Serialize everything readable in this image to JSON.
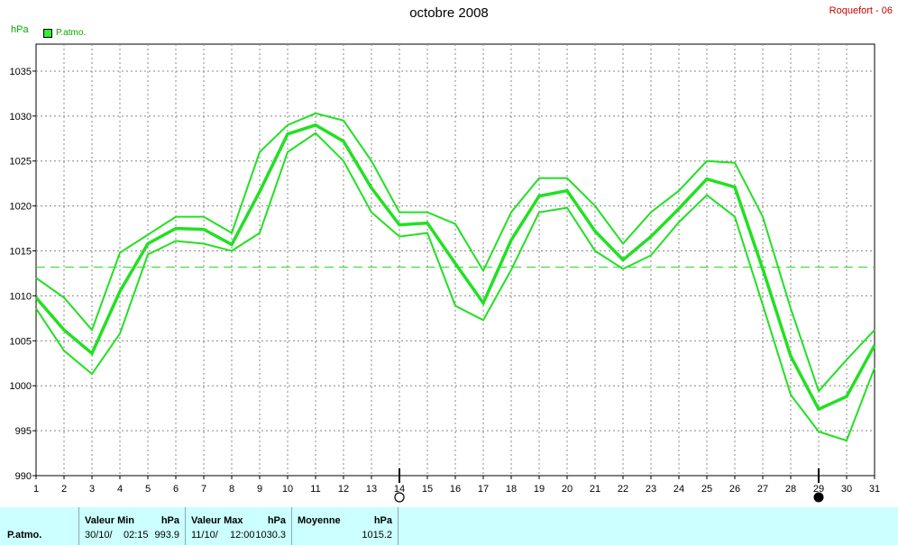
{
  "header": {
    "title": "octobre 2008",
    "station": "Roquefort - 06",
    "unit": "hPa",
    "legend_label": "P.atmo."
  },
  "chart_data": {
    "type": "line",
    "title": "octobre 2008",
    "ylabel": "hPa",
    "ylim": [
      990,
      1038
    ],
    "yticks": [
      990,
      995,
      1000,
      1005,
      1010,
      1015,
      1020,
      1025,
      1030,
      1035
    ],
    "x": [
      1,
      2,
      3,
      4,
      5,
      6,
      7,
      8,
      9,
      10,
      11,
      12,
      13,
      14,
      15,
      16,
      17,
      18,
      19,
      20,
      21,
      22,
      23,
      24,
      25,
      26,
      27,
      28,
      29,
      30,
      31
    ],
    "grid": true,
    "series": [
      {
        "name": "P.atmo.",
        "role": "max",
        "values": [
          1012,
          1009.8,
          1006.2,
          1014.8,
          1016.8,
          1018.8,
          1018.8,
          1017,
          1026,
          1029,
          1030.3,
          1029.5,
          1025,
          1019.3,
          1019.3,
          1018,
          1012.8,
          1019.3,
          1023.1,
          1023.1,
          1020,
          1015.8,
          1019.3,
          1021.7,
          1025,
          1024.8,
          1018.8,
          1008.6,
          999.4,
          1002.9,
          1006.2
        ]
      },
      {
        "name": "P.atmo.",
        "role": "moyenne",
        "values": [
          1009.8,
          1006.2,
          1003.6,
          1010.5,
          1015.8,
          1017.5,
          1017.4,
          1015.7,
          1021.6,
          1028,
          1029,
          1027.2,
          1022,
          1017.9,
          1018.1,
          1013.6,
          1009.2,
          1016.2,
          1021.1,
          1021.7,
          1017.2,
          1014,
          1016.6,
          1019.7,
          1023,
          1022.1,
          1013,
          1003.3,
          997.4,
          998.8,
          1004.5
        ]
      },
      {
        "name": "P.atmo.",
        "role": "min",
        "values": [
          1008.6,
          1003.9,
          1001.3,
          1005.8,
          1014.6,
          1016.1,
          1015.8,
          1015,
          1017,
          1026,
          1028.1,
          1025,
          1019.3,
          1016.6,
          1017,
          1008.9,
          1007.3,
          1012.9,
          1019.3,
          1019.8,
          1015,
          1013,
          1014.5,
          1018.2,
          1021.2,
          1018.8,
          1009,
          999,
          994.9,
          993.9,
          1002
        ]
      }
    ],
    "average_line": 1013.2,
    "markers": {
      "new_moon_day": 29,
      "full_moon_day": 14
    }
  },
  "footer": {
    "row_label": "P.atmo.",
    "min_header": "Valeur Min",
    "max_header": "Valeur Max",
    "avg_header": "Moyenne",
    "unit": "hPa",
    "min_date": "30/10/",
    "min_time": "02:15",
    "min_value": "993.9",
    "max_date": "11/10/",
    "max_time": "12:00",
    "max_value": "1030.3",
    "avg_value": "1015.2"
  },
  "colors": {
    "series": "#22e022",
    "grid": "#888888",
    "footer_bg": "#ccffff"
  }
}
